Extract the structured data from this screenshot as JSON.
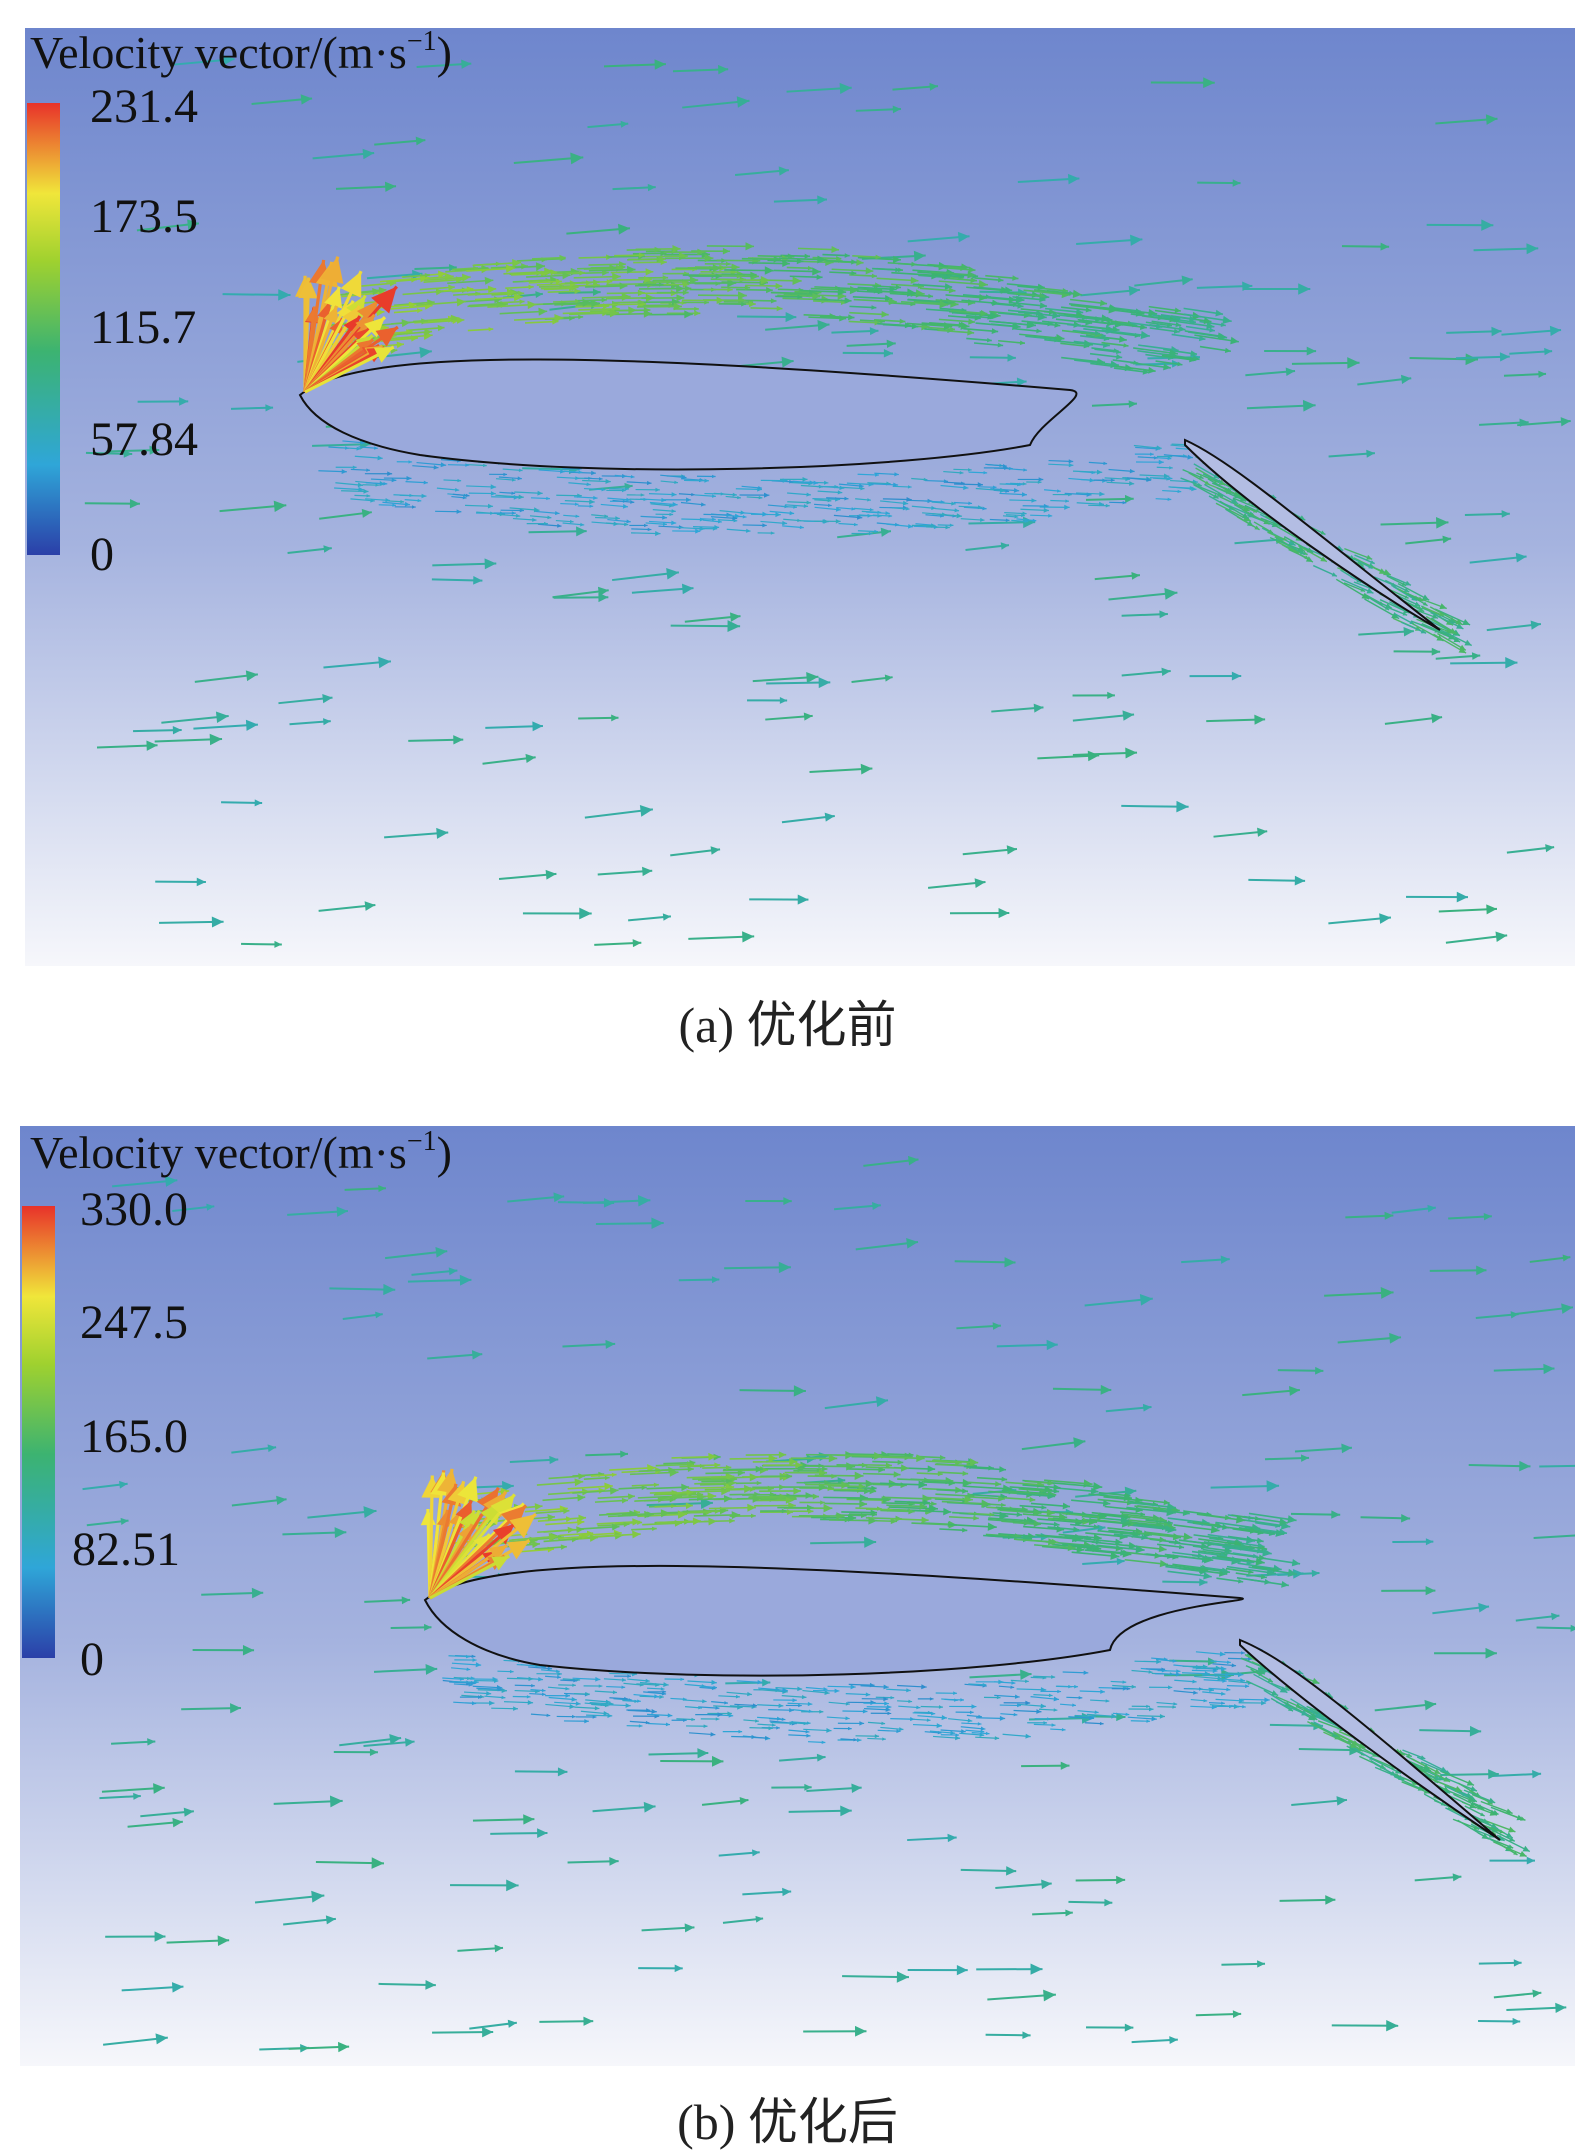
{
  "panels": [
    {
      "id": "a",
      "title_text": "Velocity vector/(m·s",
      "title_sup": "−1",
      "title_close": ")",
      "ticks": [
        "231.4",
        "173.5",
        "115.7",
        "57.84",
        "0"
      ],
      "caption": "(a) 优化前",
      "max_velocity": 231.4
    },
    {
      "id": "b",
      "title_text": "Velocity vector/(m·s",
      "title_sup": "−1",
      "title_close": ")",
      "ticks": [
        "330.0",
        "247.5",
        "165.0",
        "82.51",
        "0"
      ],
      "caption": "(b) 优化后",
      "max_velocity": 330.0
    }
  ],
  "colors": {
    "bg_top": "#7088cf",
    "bg_bottom": "#f7f8fc",
    "scale_low": "#2b3fa8",
    "scale_mid": "#3cb371",
    "scale_high": "#e8322a"
  }
}
